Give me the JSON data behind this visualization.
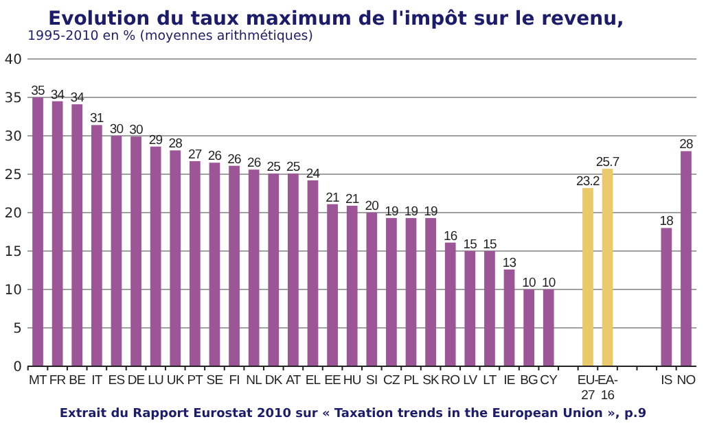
{
  "chart_data": {
    "type": "bar",
    "title": "Evolution du taux maximum de l'impôt sur le revenu,",
    "subtitle": "1995-2010 en % (moyennes arithmétiques)",
    "categories": [
      "MT",
      "FR",
      "BE",
      "IT",
      "ES",
      "DE",
      "LU",
      "UK",
      "PT",
      "SE",
      "FI",
      "NL",
      "DK",
      "AT",
      "EL",
      "EE",
      "HU",
      "SI",
      "CZ",
      "PL",
      "SK",
      "RO",
      "LV",
      "LT",
      "IE",
      "BG",
      "CY",
      null,
      "EU-27",
      "EA-16",
      null,
      null,
      "IS",
      "NO"
    ],
    "values": [
      35,
      34.5,
      34.1,
      31.4,
      30,
      29.9,
      28.6,
      28.1,
      26.7,
      26.5,
      26.1,
      25.6,
      25.1,
      25.1,
      24.2,
      21.1,
      20.9,
      20,
      19.3,
      19.3,
      19.3,
      16.1,
      15,
      15,
      12.6,
      10,
      10,
      null,
      23.2,
      25.7,
      null,
      null,
      18,
      28
    ],
    "value_labels": [
      "35",
      "34",
      "34",
      "31",
      "30",
      "30",
      "29",
      "28",
      "27",
      "26",
      "26",
      "26",
      "25",
      "25",
      "24",
      "21",
      "21",
      "20",
      "19",
      "19",
      "19",
      "16",
      "15",
      "15",
      "13",
      "10",
      "10",
      null,
      "23.2",
      "25.7",
      null,
      null,
      "18",
      "28"
    ],
    "colors": [
      "#9c5596",
      "#9c5596",
      "#9c5596",
      "#9c5596",
      "#9c5596",
      "#9c5596",
      "#9c5596",
      "#9c5596",
      "#9c5596",
      "#9c5596",
      "#9c5596",
      "#9c5596",
      "#9c5596",
      "#9c5596",
      "#9c5596",
      "#9c5596",
      "#9c5596",
      "#9c5596",
      "#9c5596",
      "#9c5596",
      "#9c5596",
      "#9c5596",
      "#9c5596",
      "#9c5596",
      "#9c5596",
      "#9c5596",
      "#9c5596",
      null,
      "#eac96a",
      "#eac96a",
      null,
      null,
      "#9c5596",
      "#9c5596"
    ],
    "ylim": [
      0,
      40
    ],
    "yticks": [
      0,
      5,
      10,
      15,
      20,
      25,
      30,
      35,
      40
    ],
    "grid": "y",
    "annotations": [
      "Extrait du Rapport Eurostat 2010 sur « Taxation trends in the European Union », p.9"
    ]
  }
}
